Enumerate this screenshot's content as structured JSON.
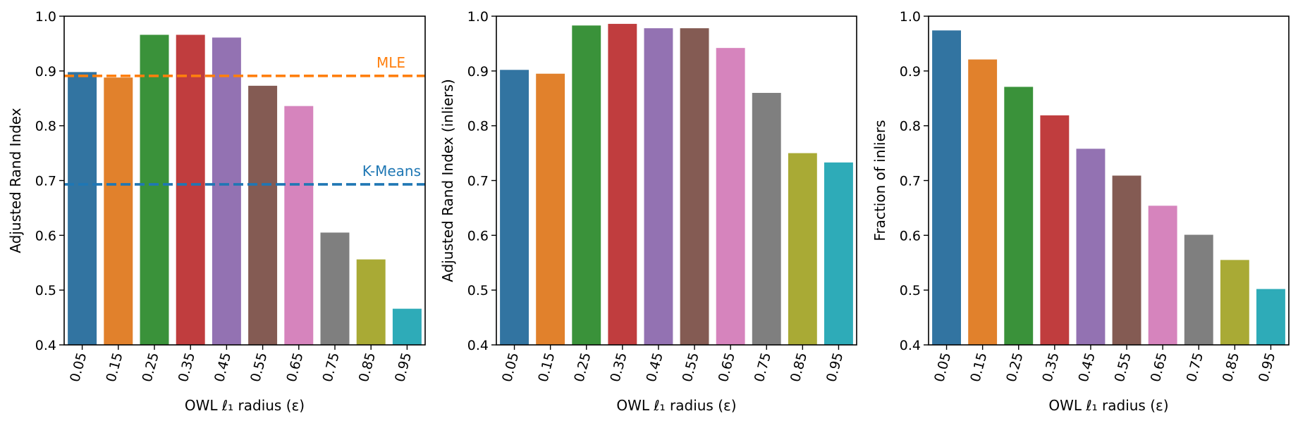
{
  "palette": [
    "#3274a1",
    "#e1812c",
    "#3a923a",
    "#c03d3e",
    "#9372b2",
    "#845b53",
    "#d684bd",
    "#7f7f7f",
    "#a9aa35",
    "#2eabb8"
  ],
  "chart_data": [
    {
      "type": "bar",
      "categories": [
        "0.05",
        "0.15",
        "0.25",
        "0.35",
        "0.45",
        "0.55",
        "0.65",
        "0.75",
        "0.85",
        "0.95"
      ],
      "values": [
        0.898,
        0.888,
        0.966,
        0.966,
        0.961,
        0.873,
        0.836,
        0.605,
        0.556,
        0.466
      ],
      "xlabel": "OWL ℓ₁ radius (ε)",
      "ylabel": "Adjusted Rand Index",
      "ylim": [
        0.4,
        1.0
      ],
      "yticks": [
        "0.4",
        "0.5",
        "0.6",
        "0.7",
        "0.8",
        "0.9",
        "1.0"
      ],
      "grid": false,
      "reference_lines": [
        {
          "label": "MLE",
          "value": 0.891,
          "color": "#ff7f0e"
        },
        {
          "label": "K-Means",
          "value": 0.693,
          "color": "#1f77b4"
        }
      ]
    },
    {
      "type": "bar",
      "categories": [
        "0.05",
        "0.15",
        "0.25",
        "0.35",
        "0.45",
        "0.55",
        "0.65",
        "0.75",
        "0.85",
        "0.95"
      ],
      "values": [
        0.902,
        0.895,
        0.983,
        0.986,
        0.978,
        0.978,
        0.942,
        0.86,
        0.75,
        0.733
      ],
      "xlabel": "OWL ℓ₁ radius (ε)",
      "ylabel": "Adjusted Rand Index (inliers)",
      "ylim": [
        0.4,
        1.0
      ],
      "yticks": [
        "0.4",
        "0.5",
        "0.6",
        "0.7",
        "0.8",
        "0.9",
        "1.0"
      ],
      "grid": false
    },
    {
      "type": "bar",
      "categories": [
        "0.05",
        "0.15",
        "0.25",
        "0.35",
        "0.45",
        "0.55",
        "0.65",
        "0.75",
        "0.85",
        "0.95"
      ],
      "values": [
        0.974,
        0.921,
        0.871,
        0.819,
        0.758,
        0.709,
        0.654,
        0.601,
        0.555,
        0.502
      ],
      "xlabel": "OWL ℓ₁ radius (ε)",
      "ylabel": "Fraction of inliers",
      "ylim": [
        0.4,
        1.0
      ],
      "yticks": [
        "0.4",
        "0.5",
        "0.6",
        "0.7",
        "0.8",
        "0.9",
        "1.0"
      ],
      "grid": false
    }
  ]
}
